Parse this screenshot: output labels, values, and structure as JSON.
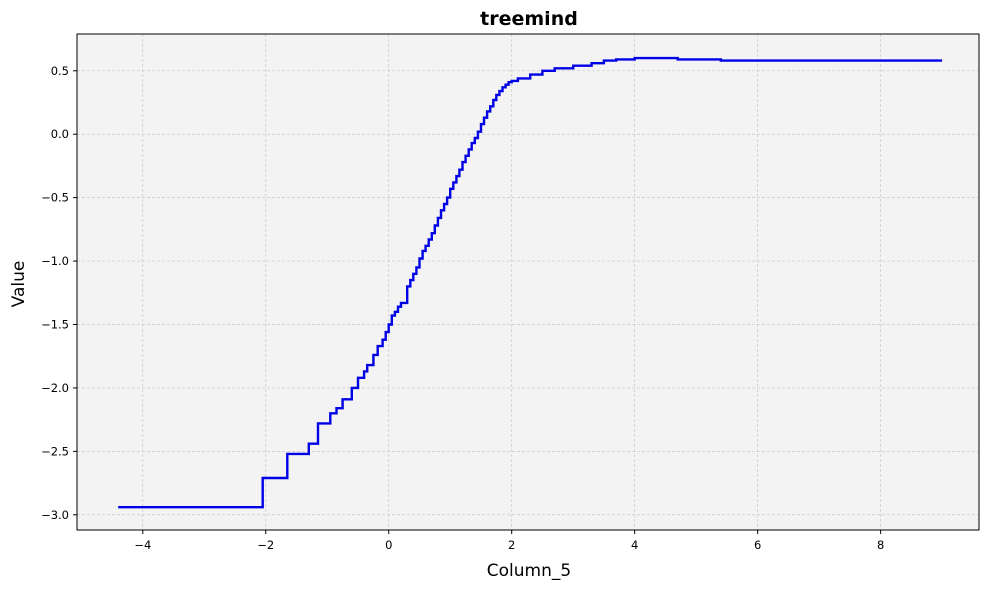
{
  "chart_data": {
    "type": "line",
    "title": "treemind",
    "xlabel": "Column_5",
    "ylabel": "Value",
    "xlim": [
      -5.07,
      9.6
    ],
    "ylim": [
      -3.12,
      0.79
    ],
    "x_ticks": [
      -4,
      -2,
      0,
      2,
      4,
      6,
      8
    ],
    "x_tick_labels": [
      "−4",
      "−2",
      "0",
      "2",
      "4",
      "6",
      "8"
    ],
    "y_ticks": [
      -3.0,
      -2.5,
      -2.0,
      -1.5,
      -1.0,
      -0.5,
      0.0,
      0.5
    ],
    "y_tick_labels": [
      "−3.0",
      "−2.5",
      "−2.0",
      "−1.5",
      "−1.0",
      "−0.5",
      "0.0",
      "0.5"
    ],
    "grid": true,
    "plot_background": "#f3f3f3",
    "line_color": "#0000e6",
    "step": true,
    "series": [
      {
        "x": [
          -4.4,
          -2.05,
          -1.65,
          -1.3,
          -1.15,
          -0.95,
          -0.85,
          -0.75,
          -0.6,
          -0.5,
          -0.4,
          -0.35,
          -0.25,
          -0.18,
          -0.1,
          -0.05,
          0.0,
          0.05,
          0.1,
          0.15,
          0.2,
          0.3,
          0.35,
          0.4,
          0.45,
          0.5,
          0.55,
          0.6,
          0.65,
          0.7,
          0.75,
          0.8,
          0.85,
          0.9,
          0.95,
          1.0,
          1.05,
          1.1,
          1.15,
          1.2,
          1.25,
          1.3,
          1.35,
          1.4,
          1.45,
          1.5,
          1.55,
          1.6,
          1.65,
          1.7,
          1.75,
          1.8,
          1.85,
          1.9,
          1.95,
          2.0,
          2.1,
          2.3,
          2.5,
          2.7,
          3.0,
          3.3,
          3.5,
          3.7,
          4.0,
          4.3,
          4.7,
          5.0,
          5.4,
          9.0
        ],
        "y": [
          -2.94,
          -2.71,
          -2.52,
          -2.44,
          -2.28,
          -2.2,
          -2.16,
          -2.09,
          -2.0,
          -1.92,
          -1.87,
          -1.82,
          -1.74,
          -1.67,
          -1.62,
          -1.56,
          -1.5,
          -1.43,
          -1.4,
          -1.36,
          -1.33,
          -1.2,
          -1.15,
          -1.1,
          -1.05,
          -0.98,
          -0.92,
          -0.88,
          -0.83,
          -0.78,
          -0.72,
          -0.66,
          -0.6,
          -0.55,
          -0.5,
          -0.43,
          -0.38,
          -0.33,
          -0.28,
          -0.22,
          -0.17,
          -0.12,
          -0.07,
          -0.03,
          0.02,
          0.08,
          0.13,
          0.18,
          0.22,
          0.27,
          0.31,
          0.34,
          0.37,
          0.39,
          0.41,
          0.42,
          0.44,
          0.47,
          0.5,
          0.52,
          0.54,
          0.56,
          0.58,
          0.59,
          0.6,
          0.6,
          0.59,
          0.59,
          0.58,
          0.58
        ]
      }
    ]
  }
}
